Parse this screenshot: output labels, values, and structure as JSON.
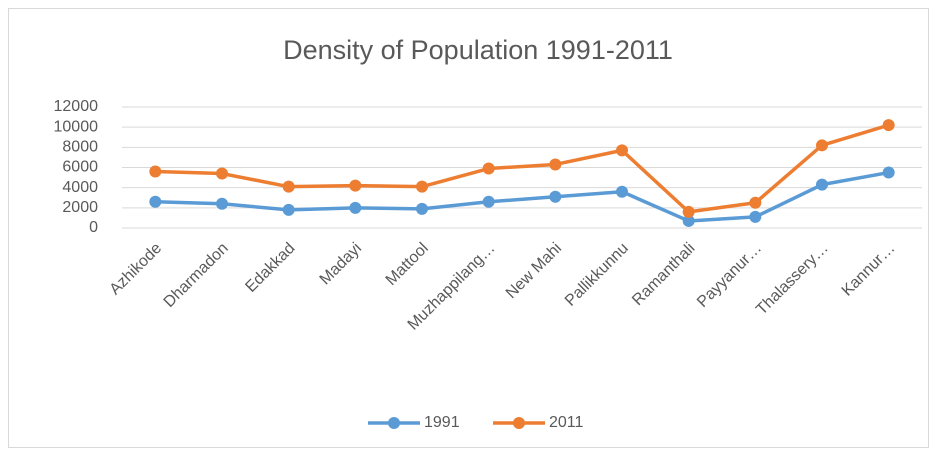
{
  "chart_data": {
    "type": "line",
    "title": "Density of Population 1991-2011",
    "categories": [
      "Azhikode",
      "Dharmadon",
      "Edakkad",
      "Madayi",
      "Mattool",
      "Muzhappilang…",
      "New Mahi",
      "Pallikkunnu",
      "Ramanthali",
      "Payyanur…",
      "Thalassery…",
      "Kannur…"
    ],
    "series": [
      {
        "name": "1991",
        "color": "#5b9bd5",
        "values": [
          2600,
          2400,
          1800,
          2000,
          1900,
          2600,
          3100,
          3600,
          700,
          1100,
          4300,
          5500
        ]
      },
      {
        "name": "2011",
        "color": "#ed7d31",
        "values": [
          5600,
          5400,
          4100,
          4200,
          4100,
          5900,
          6300,
          7700,
          1600,
          2500,
          8200,
          10200
        ]
      }
    ],
    "ylim": [
      0,
      12000
    ],
    "yticks": [
      0,
      2000,
      4000,
      6000,
      8000,
      10000,
      12000
    ],
    "grid": true,
    "legend": "bottom"
  }
}
